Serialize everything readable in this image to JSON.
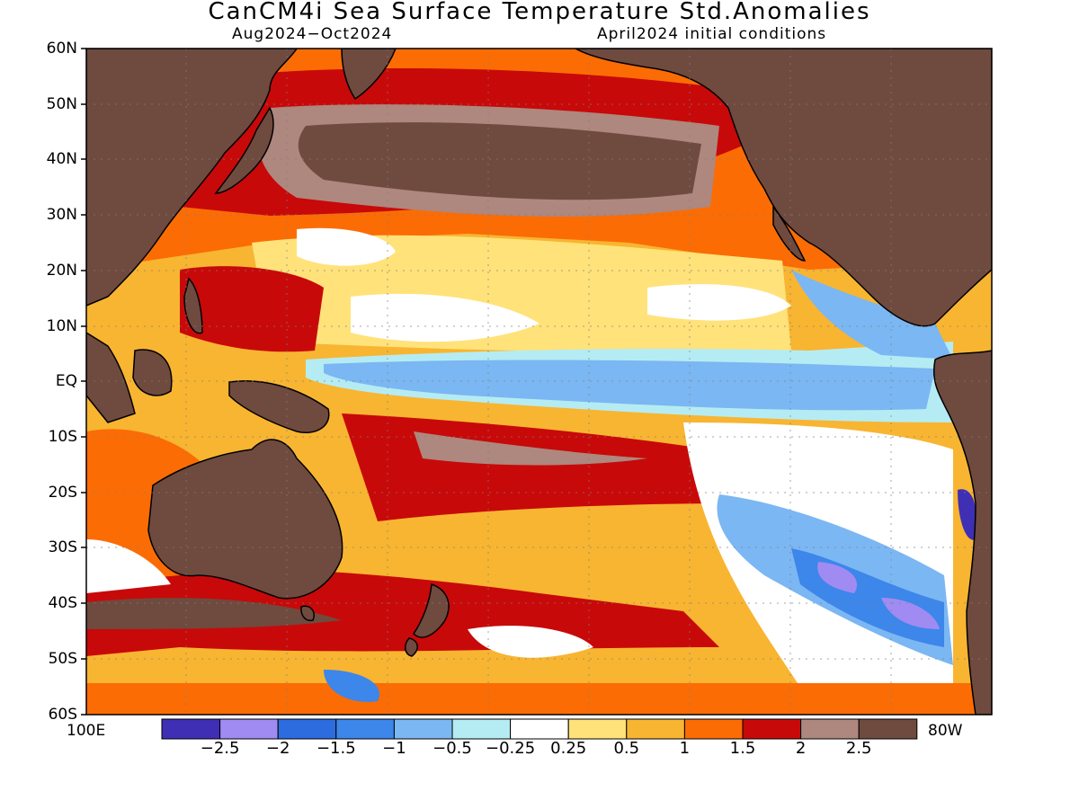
{
  "title": "CanCM4i Sea Surface Temperature Std.Anomalies",
  "subtitle_left": "Aug2024−Oct2024",
  "subtitle_right": "April2024 initial conditions",
  "lat_labels": [
    "60N",
    "50N",
    "40N",
    "30N",
    "20N",
    "10N",
    "EQ",
    "10S",
    "20S",
    "30S",
    "40S",
    "50S",
    "60S"
  ],
  "lon_left": "100E",
  "lon_right": "80W",
  "colorbar": {
    "colors": [
      "#3f2fb5",
      "#a08bf3",
      "#2d6cde",
      "#3d86ea",
      "#7bb7f3",
      "#b5ecf3",
      "#ffffff",
      "#ffe27a",
      "#f8b531",
      "#fb6c05",
      "#c80909",
      "#ae877e",
      "#6f4a3f"
    ],
    "labels": [
      "−2.5",
      "−2",
      "−1.5",
      "−1",
      "−0.5",
      "−0.25",
      "0.25",
      "0.5",
      "1",
      "1.5",
      "2",
      "2.5"
    ]
  }
}
